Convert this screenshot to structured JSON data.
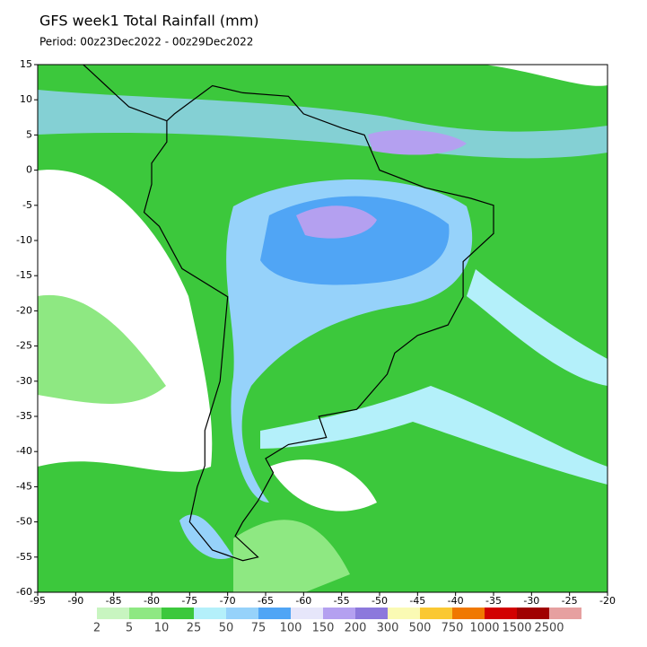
{
  "title": "GFS week1 Total Rainfall (mm)",
  "subtitle": "Period: 00z23Dec2022 - 00z29Dec2022",
  "map": {
    "lon_ticks": [
      -95,
      -90,
      -85,
      -80,
      -75,
      -70,
      -65,
      -60,
      -55,
      -50,
      -45,
      -40,
      -35,
      -30,
      -25,
      -20
    ],
    "lat_ticks": [
      15,
      10,
      5,
      0,
      -5,
      -10,
      -15,
      -20,
      -25,
      -30,
      -35,
      -40,
      -45,
      -50,
      -55,
      -60
    ],
    "xlim": [
      -95,
      -20
    ],
    "ylim": [
      -60,
      15
    ]
  },
  "legend": {
    "levels": [
      2,
      5,
      10,
      25,
      50,
      75,
      100,
      150,
      200,
      300,
      500,
      750,
      1000,
      1500,
      2500
    ],
    "colors": [
      "#c8f5c0",
      "#8ee882",
      "#3cc83c",
      "#b4f0fa",
      "#96d2fa",
      "#50a5f5",
      "#e6e6fa",
      "#b4a0f0",
      "#8c78dc",
      "#fafab4",
      "#fac832",
      "#f07800",
      "#d20000",
      "#a00000",
      "#e6a0a0"
    ]
  }
}
